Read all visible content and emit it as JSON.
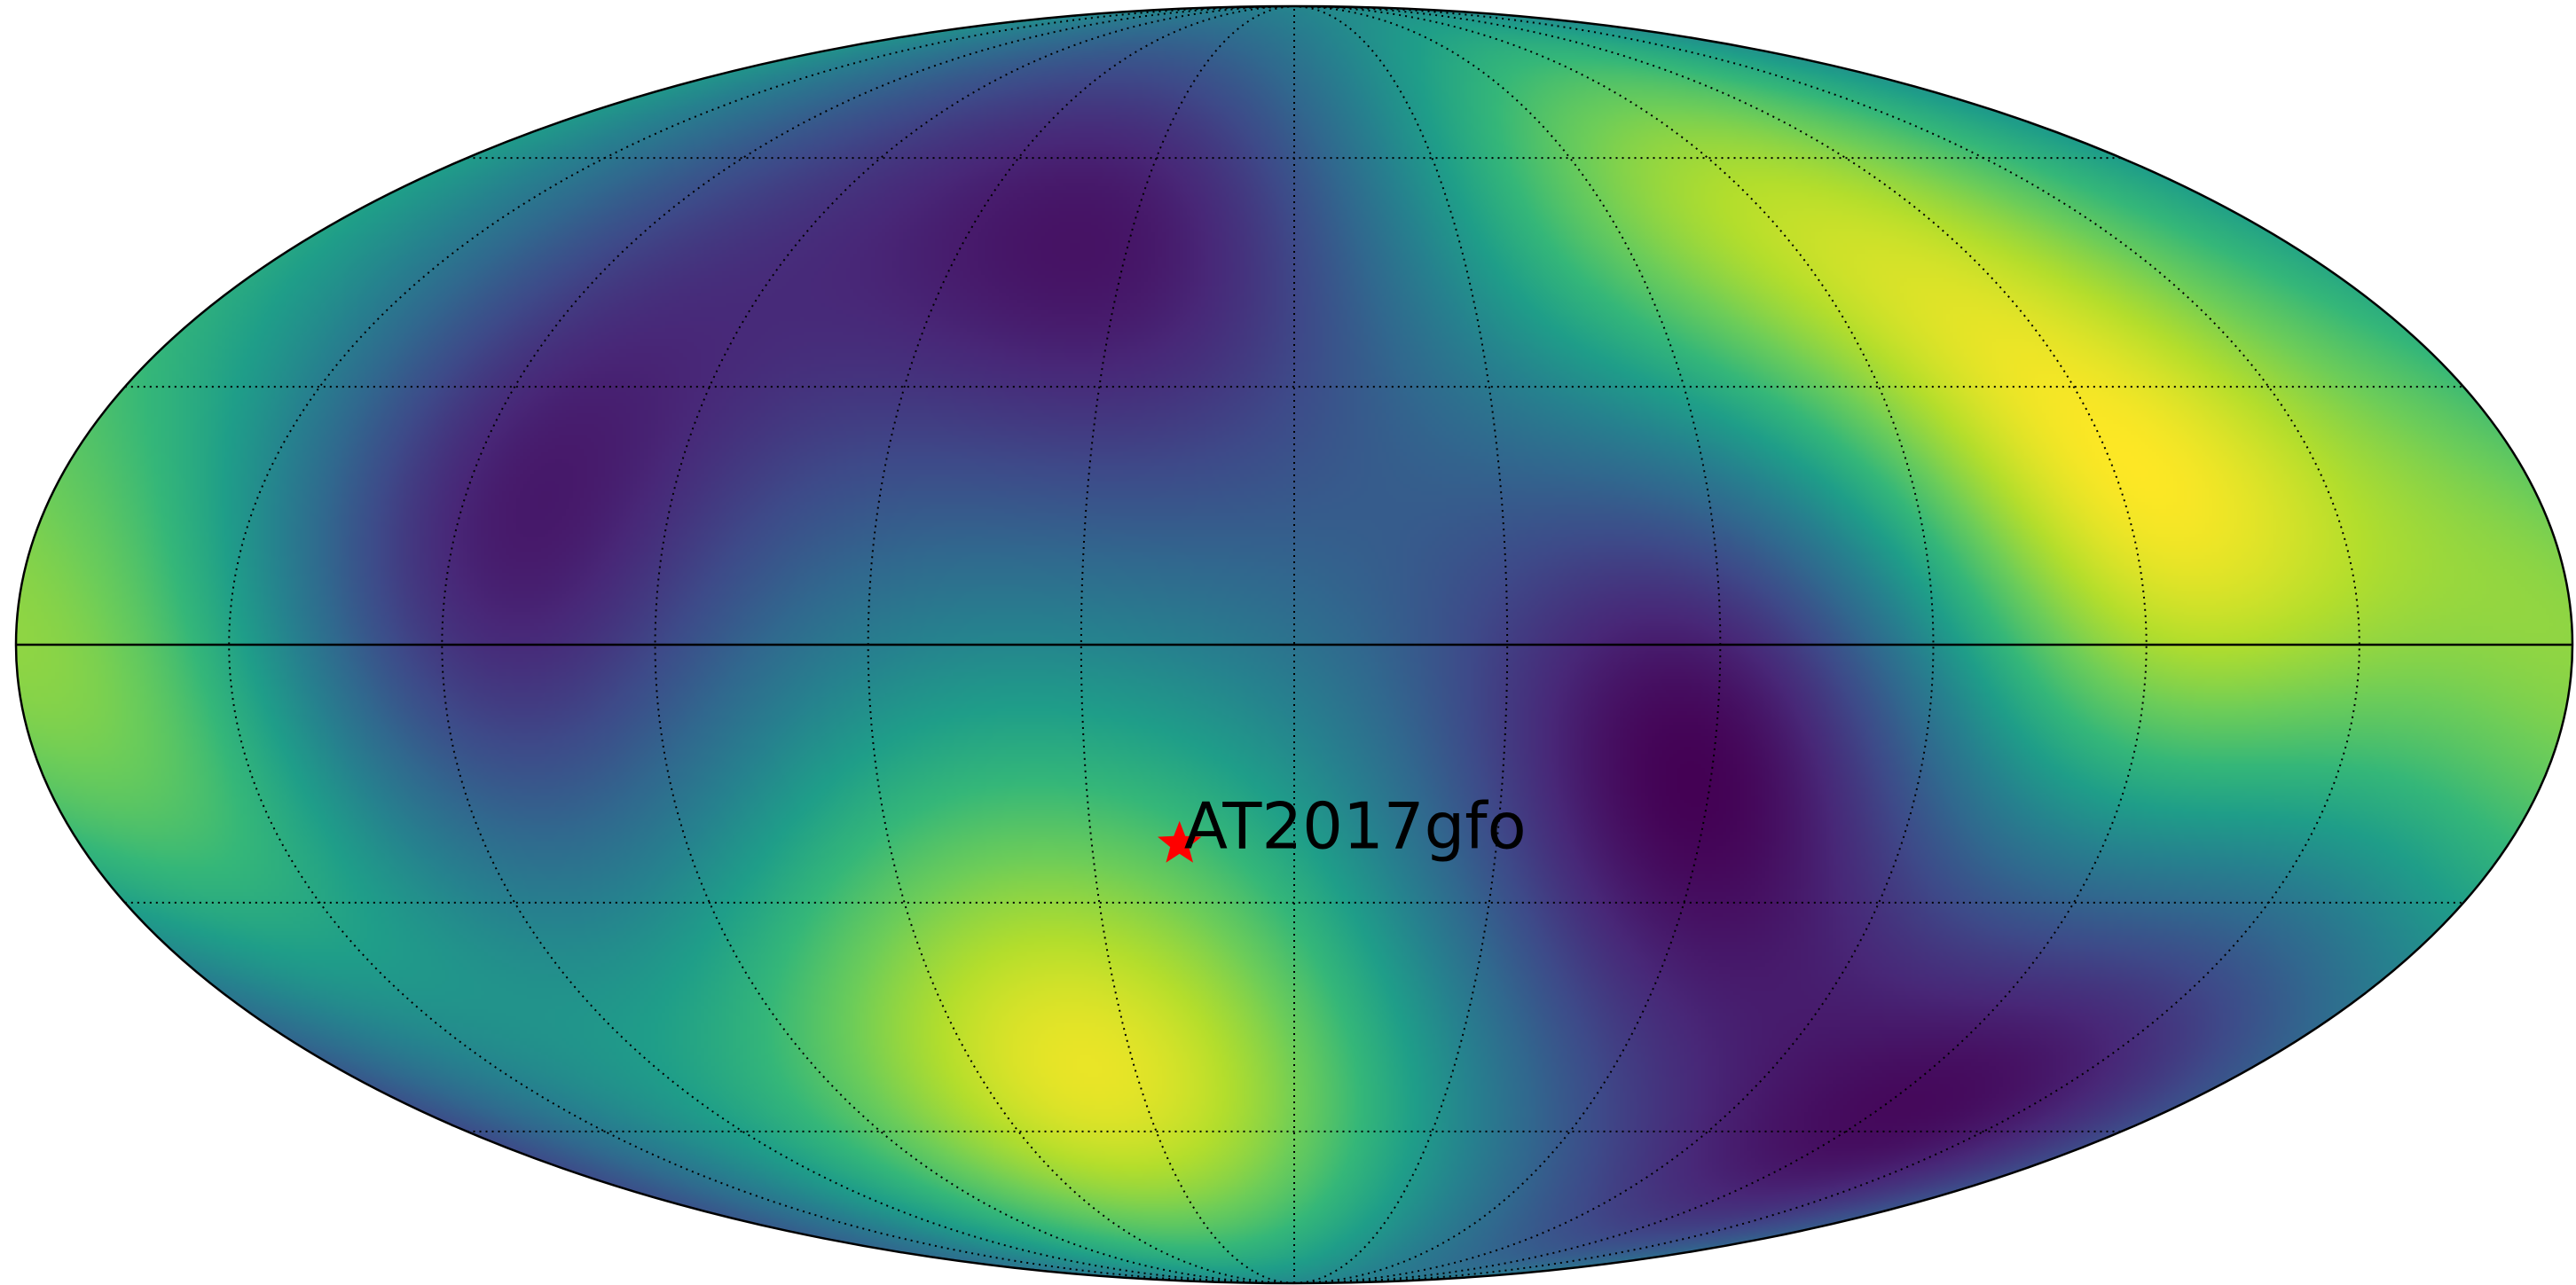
{
  "map": {
    "projection": "mollweide",
    "colormap": "viridis",
    "graticule": {
      "parallels_deg": [
        -60,
        -30,
        0,
        30,
        60
      ],
      "meridians_deg": [
        -180,
        -150,
        -120,
        -90,
        -60,
        -30,
        0,
        30,
        60,
        90,
        120,
        150,
        180
      ],
      "style": "dotted",
      "equator_solid": true,
      "central_meridian_solid": false
    },
    "field": {
      "minima": [
        {
          "lon": -123,
          "lat": 7
        },
        {
          "lon": -19,
          "lat": 55
        },
        {
          "lon": 60,
          "lat": -7
        },
        {
          "lon": 137,
          "lat": -55
        }
      ],
      "maxima": [
        {
          "lon": 57,
          "lat": 55
        },
        {
          "lon": -37,
          "lat": -55
        },
        {
          "lon": 120,
          "lat": 7
        },
        {
          "lon": -160,
          "lat": -7
        }
      ]
    },
    "source": {
      "name": "AT2017gfo",
      "lon": -17,
      "lat": -23,
      "marker": "star",
      "marker_color": "#ff0000"
    }
  }
}
